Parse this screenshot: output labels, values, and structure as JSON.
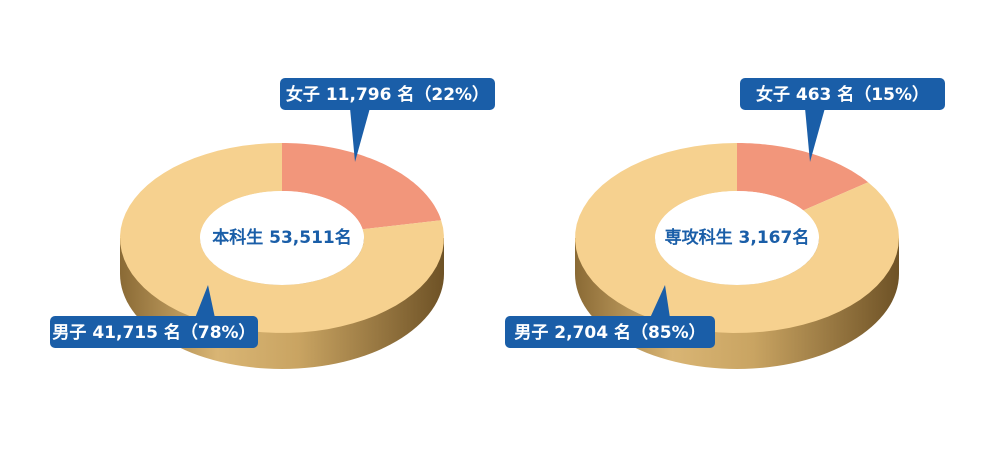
{
  "chart_data": [
    {
      "type": "pie",
      "donut": true,
      "center_label": "本科生 53,511名",
      "values": [
        22,
        78
      ],
      "value_labels": [
        "女子 11,796 名（22%）",
        "男子 41,715 名（78%）"
      ],
      "colors": [
        "#f2967b",
        "#f6d18f"
      ]
    },
    {
      "type": "pie",
      "donut": true,
      "center_label": "専攻科生 3,167名",
      "values": [
        15,
        85
      ],
      "value_labels": [
        "女子 463 名（15%）",
        "男子 2,704 名（85%）"
      ],
      "colors": [
        "#f2967b",
        "#f6d18f"
      ]
    }
  ]
}
